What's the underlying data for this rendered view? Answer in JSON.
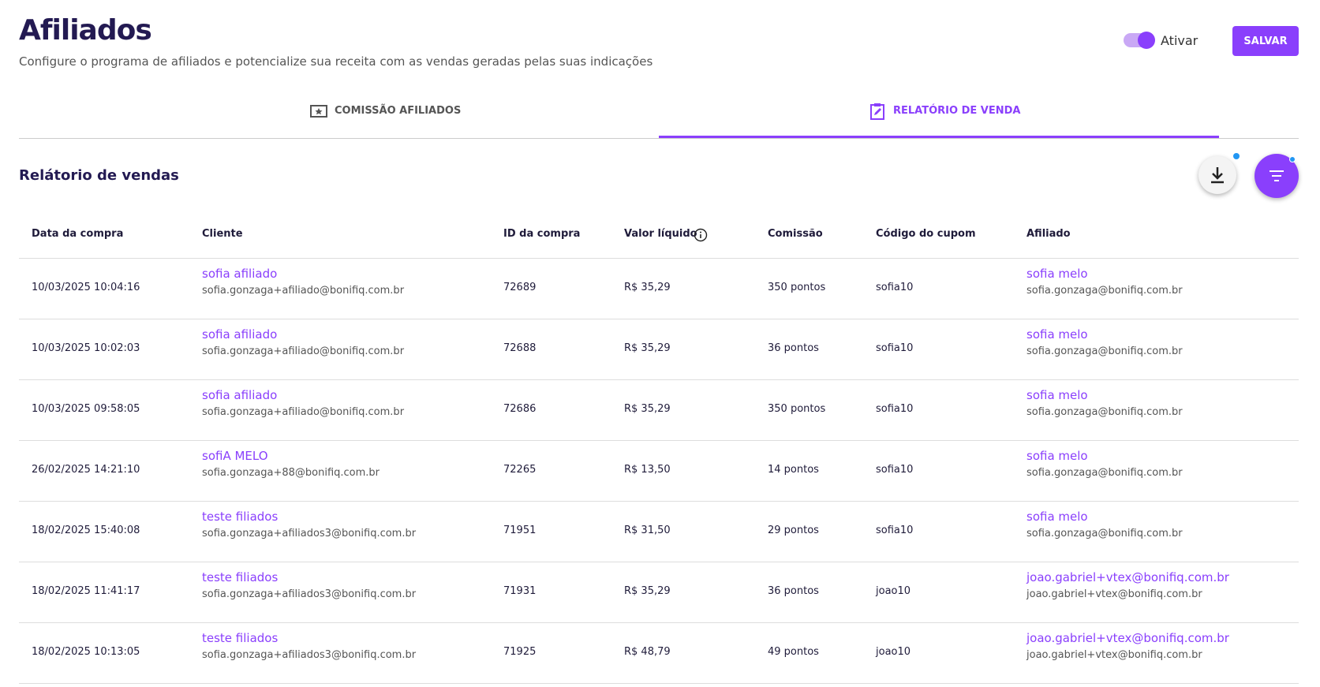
{
  "header": {
    "title": "Afiliados",
    "subtitle": "Configure o programa de afiliados e potencialize sua receita com as vendas geradas pelas suas indicações",
    "toggle_label": "Ativar",
    "save_button": "SALVAR"
  },
  "tabs": [
    "COMISSÃO AFILIADOS",
    "RELATÓRIO DE VENDA"
  ],
  "section_title": "Relátorio de vendas",
  "table": {
    "columns": [
      "Data da compra",
      "Cliente",
      "ID da compra",
      "Valor líquido",
      "Comissão",
      "Código do cupom",
      "Afiliado"
    ],
    "rows": [
      [
        "10/03/2025 10:04:16",
        "sofia afiliado",
        "sofia.gonzaga+afiliado@bonifiq.com.br",
        "72689",
        "R$ 35,29",
        "350 pontos",
        "sofia10",
        "sofia melo",
        "sofia.gonzaga@bonifiq.com.br"
      ],
      [
        "10/03/2025 10:02:03",
        "sofia afiliado",
        "sofia.gonzaga+afiliado@bonifiq.com.br",
        "72688",
        "R$ 35,29",
        "36 pontos",
        "sofia10",
        "sofia melo",
        "sofia.gonzaga@bonifiq.com.br"
      ],
      [
        "10/03/2025 09:58:05",
        "sofia afiliado",
        "sofia.gonzaga+afiliado@bonifiq.com.br",
        "72686",
        "R$ 35,29",
        "350 pontos",
        "sofia10",
        "sofia melo",
        "sofia.gonzaga@bonifiq.com.br"
      ],
      [
        "26/02/2025 14:21:10",
        "sofiA MELO",
        "sofia.gonzaga+88@bonifiq.com.br",
        "72265",
        "R$ 13,50",
        "14 pontos",
        "sofia10",
        "sofia melo",
        "sofia.gonzaga@bonifiq.com.br"
      ],
      [
        "18/02/2025 15:40:08",
        "teste filiados",
        "sofia.gonzaga+afiliados3@bonifiq.com.br",
        "71951",
        "R$ 31,50",
        "29 pontos",
        "sofia10",
        "sofia melo",
        "sofia.gonzaga@bonifiq.com.br"
      ],
      [
        "18/02/2025 11:41:17",
        "teste filiados",
        "sofia.gonzaga+afiliados3@bonifiq.com.br",
        "71931",
        "R$ 35,29",
        "36 pontos",
        "joao10",
        "joao.gabriel+vtex@bonifiq.com.br",
        "joao.gabriel+vtex@bonifiq.com.br"
      ],
      [
        "18/02/2025 10:13:05",
        "teste filiados",
        "sofia.gonzaga+afiliados3@bonifiq.com.br",
        "71925",
        "R$ 48,79",
        "49 pontos",
        "joao10",
        "joao.gabriel+vtex@bonifiq.com.br",
        "joao.gabriel+vtex@bonifiq.com.br"
      ]
    ]
  }
}
